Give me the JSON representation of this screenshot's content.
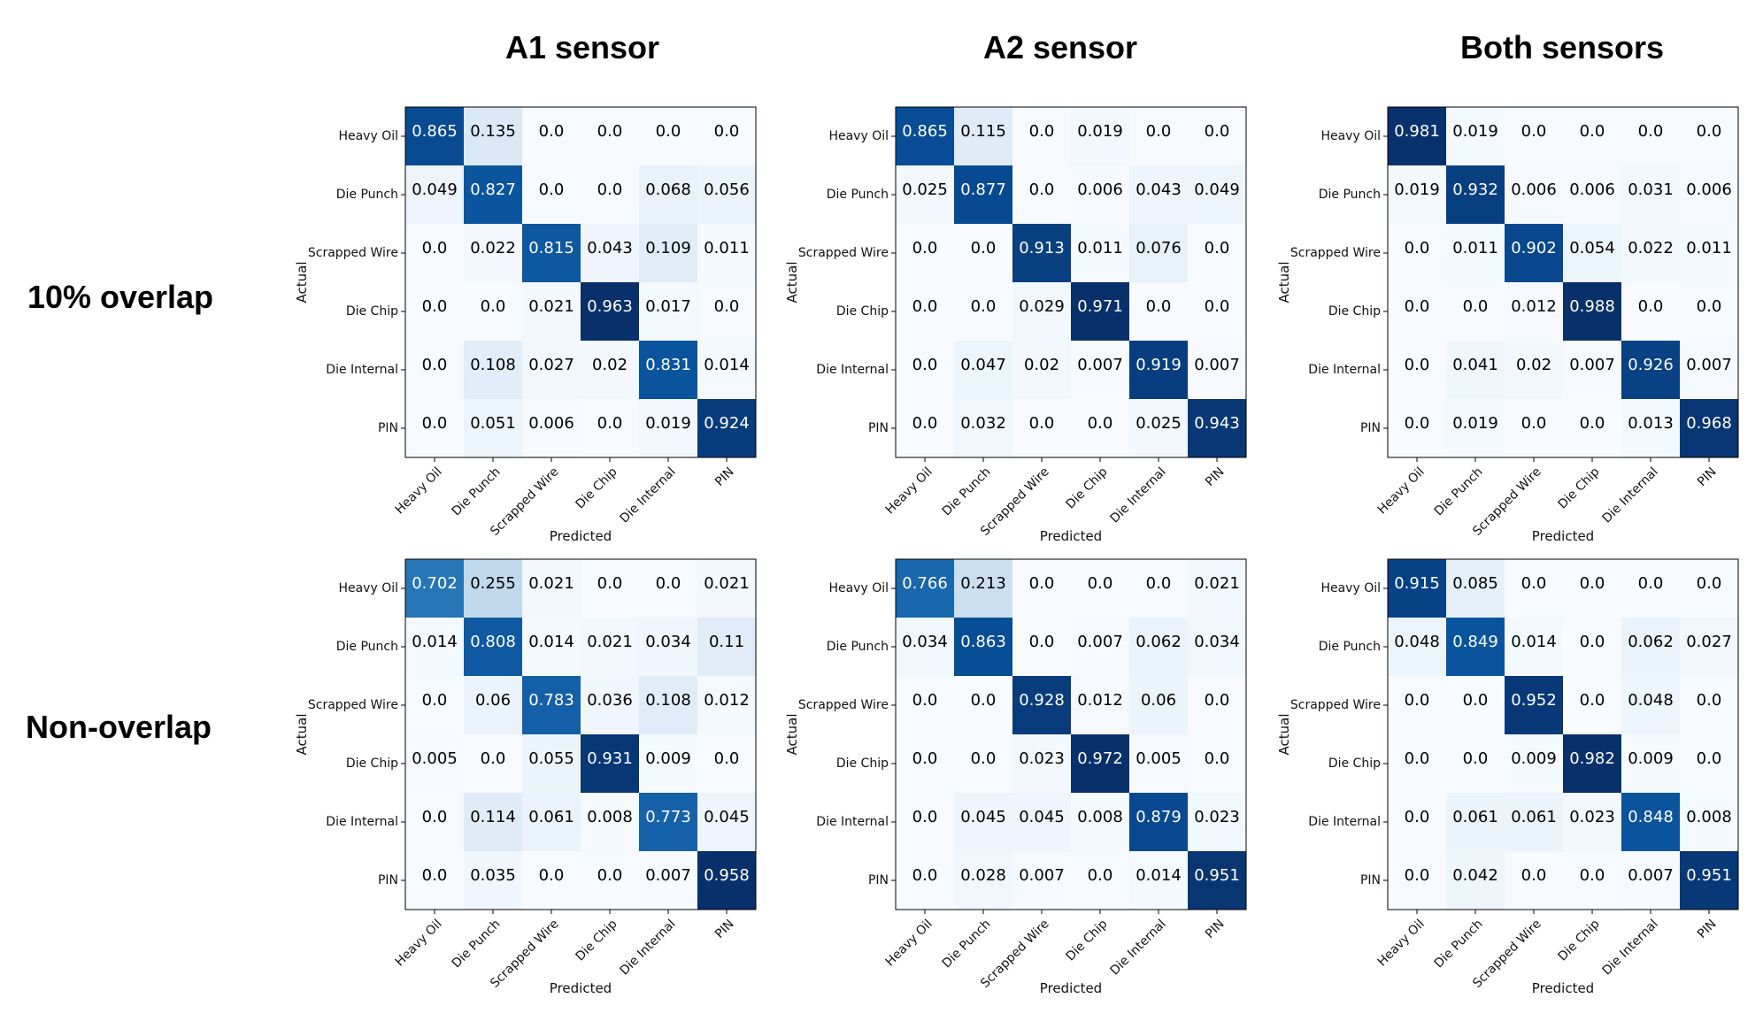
{
  "column_titles": [
    "A1 sensor",
    "A2 sensor",
    "Both sensors"
  ],
  "row_titles": [
    "10% overlap",
    "Non-overlap"
  ],
  "colormap": "Blues",
  "chart_data": [
    {
      "type": "heatmap",
      "sensor": "A1 sensor",
      "overlap": "10% overlap",
      "categories": [
        "Heavy Oil",
        "Die Punch",
        "Scrapped Wire",
        "Die Chip",
        "Die Internal",
        "PIN"
      ],
      "xlabel": "Predicted",
      "ylabel": "Actual",
      "values": [
        [
          "0.865",
          "0.135",
          "0.0",
          "0.0",
          "0.0",
          "0.0"
        ],
        [
          "0.049",
          "0.827",
          "0.0",
          "0.0",
          "0.068",
          "0.056"
        ],
        [
          "0.0",
          "0.022",
          "0.815",
          "0.043",
          "0.109",
          "0.011"
        ],
        [
          "0.0",
          "0.0",
          "0.021",
          "0.963",
          "0.017",
          "0.0"
        ],
        [
          "0.0",
          "0.108",
          "0.027",
          "0.02",
          "0.831",
          "0.014"
        ],
        [
          "0.0",
          "0.051",
          "0.006",
          "0.0",
          "0.019",
          "0.924"
        ]
      ]
    },
    {
      "type": "heatmap",
      "sensor": "A2 sensor",
      "overlap": "10% overlap",
      "categories": [
        "Heavy Oil",
        "Die Punch",
        "Scrapped Wire",
        "Die Chip",
        "Die Internal",
        "PIN"
      ],
      "xlabel": "Predicted",
      "ylabel": "Actual",
      "values": [
        [
          "0.865",
          "0.115",
          "0.0",
          "0.019",
          "0.0",
          "0.0"
        ],
        [
          "0.025",
          "0.877",
          "0.0",
          "0.006",
          "0.043",
          "0.049"
        ],
        [
          "0.0",
          "0.0",
          "0.913",
          "0.011",
          "0.076",
          "0.0"
        ],
        [
          "0.0",
          "0.0",
          "0.029",
          "0.971",
          "0.0",
          "0.0"
        ],
        [
          "0.0",
          "0.047",
          "0.02",
          "0.007",
          "0.919",
          "0.007"
        ],
        [
          "0.0",
          "0.032",
          "0.0",
          "0.0",
          "0.025",
          "0.943"
        ]
      ]
    },
    {
      "type": "heatmap",
      "sensor": "Both sensors",
      "overlap": "10% overlap",
      "categories": [
        "Heavy Oil",
        "Die Punch",
        "Scrapped Wire",
        "Die Chip",
        "Die Internal",
        "PIN"
      ],
      "xlabel": "Predicted",
      "ylabel": "Actual",
      "values": [
        [
          "0.981",
          "0.019",
          "0.0",
          "0.0",
          "0.0",
          "0.0"
        ],
        [
          "0.019",
          "0.932",
          "0.006",
          "0.006",
          "0.031",
          "0.006"
        ],
        [
          "0.0",
          "0.011",
          "0.902",
          "0.054",
          "0.022",
          "0.011"
        ],
        [
          "0.0",
          "0.0",
          "0.012",
          "0.988",
          "0.0",
          "0.0"
        ],
        [
          "0.0",
          "0.041",
          "0.02",
          "0.007",
          "0.926",
          "0.007"
        ],
        [
          "0.0",
          "0.019",
          "0.0",
          "0.0",
          "0.013",
          "0.968"
        ]
      ]
    },
    {
      "type": "heatmap",
      "sensor": "A1 sensor",
      "overlap": "Non-overlap",
      "categories": [
        "Heavy Oil",
        "Die Punch",
        "Scrapped Wire",
        "Die Chip",
        "Die Internal",
        "PIN"
      ],
      "xlabel": "Predicted",
      "ylabel": "Actual",
      "values": [
        [
          "0.702",
          "0.255",
          "0.021",
          "0.0",
          "0.0",
          "0.021"
        ],
        [
          "0.014",
          "0.808",
          "0.014",
          "0.021",
          "0.034",
          "0.11"
        ],
        [
          "0.0",
          "0.06",
          "0.783",
          "0.036",
          "0.108",
          "0.012"
        ],
        [
          "0.005",
          "0.0",
          "0.055",
          "0.931",
          "0.009",
          "0.0"
        ],
        [
          "0.0",
          "0.114",
          "0.061",
          "0.008",
          "0.773",
          "0.045"
        ],
        [
          "0.0",
          "0.035",
          "0.0",
          "0.0",
          "0.007",
          "0.958"
        ]
      ]
    },
    {
      "type": "heatmap",
      "sensor": "A2 sensor",
      "overlap": "Non-overlap",
      "categories": [
        "Heavy Oil",
        "Die Punch",
        "Scrapped Wire",
        "Die Chip",
        "Die Internal",
        "PIN"
      ],
      "xlabel": "Predicted",
      "ylabel": "Actual",
      "values": [
        [
          "0.766",
          "0.213",
          "0.0",
          "0.0",
          "0.0",
          "0.021"
        ],
        [
          "0.034",
          "0.863",
          "0.0",
          "0.007",
          "0.062",
          "0.034"
        ],
        [
          "0.0",
          "0.0",
          "0.928",
          "0.012",
          "0.06",
          "0.0"
        ],
        [
          "0.0",
          "0.0",
          "0.023",
          "0.972",
          "0.005",
          "0.0"
        ],
        [
          "0.0",
          "0.045",
          "0.045",
          "0.008",
          "0.879",
          "0.023"
        ],
        [
          "0.0",
          "0.028",
          "0.007",
          "0.0",
          "0.014",
          "0.951"
        ]
      ]
    },
    {
      "type": "heatmap",
      "sensor": "Both sensors",
      "overlap": "Non-overlap",
      "categories": [
        "Heavy Oil",
        "Die Punch",
        "Scrapped Wire",
        "Die Chip",
        "Die Internal",
        "PIN"
      ],
      "xlabel": "Predicted",
      "ylabel": "Actual",
      "values": [
        [
          "0.915",
          "0.085",
          "0.0",
          "0.0",
          "0.0",
          "0.0"
        ],
        [
          "0.048",
          "0.849",
          "0.014",
          "0.0",
          "0.062",
          "0.027"
        ],
        [
          "0.0",
          "0.0",
          "0.952",
          "0.0",
          "0.048",
          "0.0"
        ],
        [
          "0.0",
          "0.0",
          "0.009",
          "0.982",
          "0.009",
          "0.0"
        ],
        [
          "0.0",
          "0.061",
          "0.061",
          "0.023",
          "0.848",
          "0.008"
        ],
        [
          "0.0",
          "0.042",
          "0.0",
          "0.0",
          "0.007",
          "0.951"
        ]
      ]
    }
  ]
}
